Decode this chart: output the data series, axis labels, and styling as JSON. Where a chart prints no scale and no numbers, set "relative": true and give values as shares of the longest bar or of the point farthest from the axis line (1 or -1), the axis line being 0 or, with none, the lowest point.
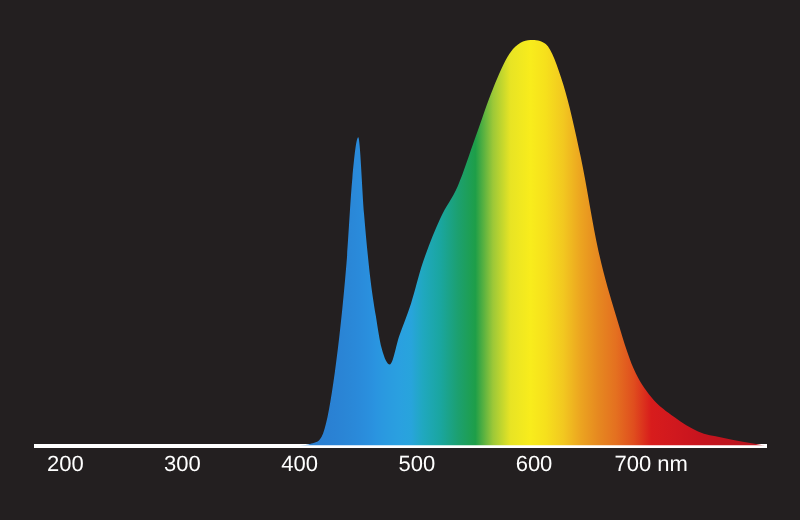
{
  "chart_data": {
    "type": "area",
    "relative": true,
    "tick_labels": "x",
    "legend": false,
    "marker": "none",
    "x": [
      400,
      410,
      420,
      430,
      440,
      445,
      450,
      455,
      460,
      465,
      470,
      477,
      485,
      495,
      505,
      520,
      535,
      550,
      565,
      580,
      597,
      610,
      625,
      640,
      655,
      670,
      685,
      700,
      720,
      740,
      760,
      797
    ],
    "values": [
      0,
      0.005,
      0.03,
      0.18,
      0.45,
      0.66,
      0.76,
      0.57,
      0.42,
      0.32,
      0.24,
      0.2,
      0.27,
      0.35,
      0.45,
      0.56,
      0.64,
      0.76,
      0.88,
      0.97,
      1,
      0.99,
      0.89,
      0.71,
      0.48,
      0.32,
      0.19,
      0.12,
      0.07,
      0.035,
      0.02,
      0
    ],
    "colors": [
      "#2a7fd0",
      "#2a7fd0",
      "#2a80d2",
      "#2a82d4",
      "#2a86d6",
      "#2a88d8",
      "#2a8ada",
      "#2a8ddc",
      "#2a90de",
      "#2a94e0",
      "#2a98e0",
      "#2a9ce0",
      "#2aa0e0",
      "#28a4dc",
      "#20a8c0",
      "#1aa6a0",
      "#1ca070",
      "#1e9e48",
      "#9cc838",
      "#e8e424",
      "#f8ec1c",
      "#f6e01c",
      "#f2c820",
      "#eca420",
      "#e68820",
      "#e47020",
      "#e04e1e",
      "#d81c1c",
      "#d0181e",
      "#c8141e",
      "#c0141e",
      "#b8141e"
    ],
    "xlim": [
      175,
      798
    ],
    "xticks": [
      200,
      300,
      400,
      500,
      600,
      {
        "value": 700,
        "label": "700 nm"
      }
    ]
  }
}
